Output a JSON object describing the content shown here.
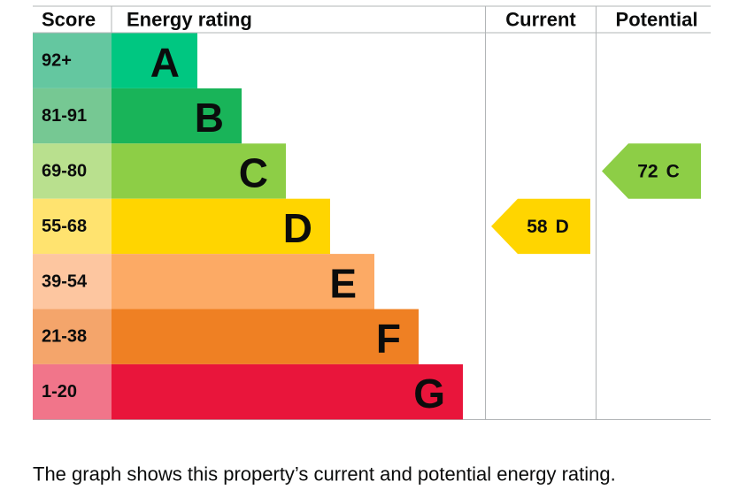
{
  "header": {
    "score": "Score",
    "energy_rating": "Energy rating",
    "current": "Current",
    "potential": "Potential"
  },
  "bands": [
    {
      "score": "92+",
      "letter": "A",
      "color": "#00c781",
      "score_color": "#64c7a0"
    },
    {
      "score": "81-91",
      "letter": "B",
      "color": "#19b459",
      "score_color": "#76c893"
    },
    {
      "score": "69-80",
      "letter": "C",
      "color": "#8dce46",
      "score_color": "#b9e08e"
    },
    {
      "score": "55-68",
      "letter": "D",
      "color": "#ffd500",
      "score_color": "#ffe36f"
    },
    {
      "score": "39-54",
      "letter": "E",
      "color": "#fcaa65",
      "score_color": "#fdc6a0"
    },
    {
      "score": "21-38",
      "letter": "F",
      "color": "#ef8023",
      "score_color": "#f4a56b"
    },
    {
      "score": "1-20",
      "letter": "G",
      "color": "#e9153b",
      "score_color": "#f1758a"
    }
  ],
  "current": {
    "value": 58,
    "letter": "D"
  },
  "potential": {
    "value": 72,
    "letter": "C"
  },
  "caption": "The graph shows this property’s current and potential energy rating."
}
